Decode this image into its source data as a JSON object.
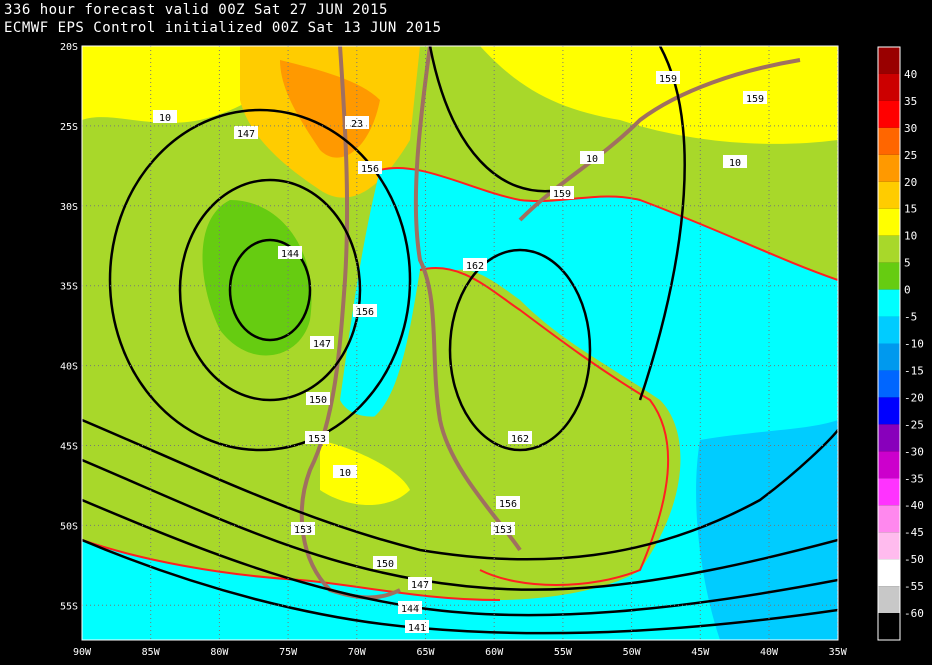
{
  "header": {
    "line1": "336 hour forecast valid 00Z Sat 27 JUN 2015",
    "line2": "ECMWF EPS Control initialized 00Z Sat 13 JUN 2015"
  },
  "map": {
    "region": "South America, 90W-35W, 20S-57S",
    "lat_labels": [
      "20S",
      "25S",
      "30S",
      "35S",
      "40S",
      "45S",
      "50S",
      "55S"
    ],
    "lon_labels": [
      "90W",
      "85W",
      "80W",
      "75W",
      "70W",
      "65W",
      "60W",
      "55W",
      "50W",
      "45W",
      "40W",
      "35W"
    ],
    "contour_labels": [
      "10",
      "147",
      "23",
      "156",
      "159",
      "159",
      "10",
      "10",
      "159",
      "144",
      "162",
      "156",
      "147",
      "150",
      "153",
      "162",
      "10",
      "156",
      "153",
      "153",
      "150",
      "147",
      "144",
      "141"
    ]
  },
  "colorbar": {
    "labels": [
      "40",
      "35",
      "30",
      "25",
      "20",
      "15",
      "10",
      "5",
      "0",
      "-5",
      "-10",
      "-15",
      "-20",
      "-25",
      "-30",
      "-35",
      "-40",
      "-45",
      "-50",
      "-55",
      "-60"
    ],
    "colors": [
      "#990000",
      "#cc0000",
      "#ff0000",
      "#ff6600",
      "#ff9900",
      "#ffcc00",
      "#ffff00",
      "#a8d82a",
      "#66cc11",
      "#00ffff",
      "#00ccff",
      "#0099ee",
      "#0066ff",
      "#0000ff",
      "#8800bb",
      "#cc00cc",
      "#ff33ff",
      "#ff88ee",
      "#ffbbee",
      "#ffffff",
      "#c8c8c8",
      "#000000"
    ]
  }
}
